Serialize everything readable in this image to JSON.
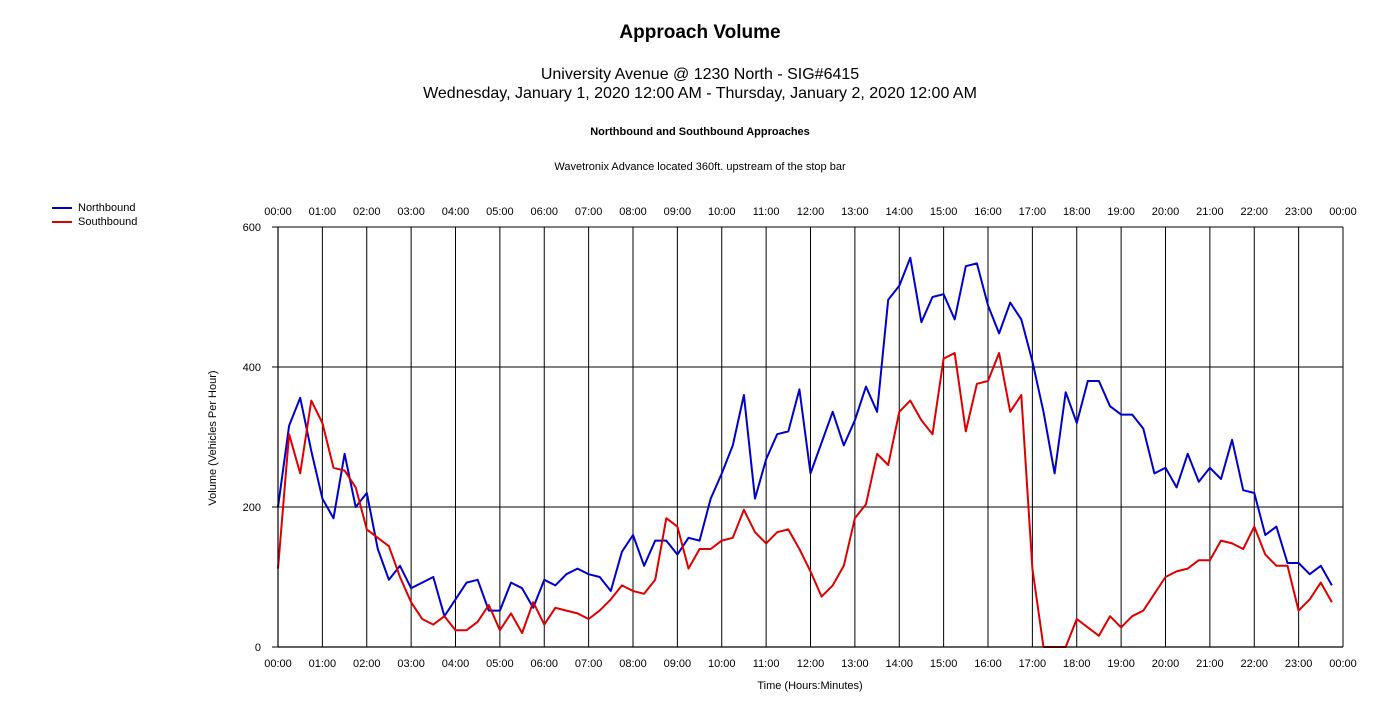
{
  "chart_data": {
    "type": "line",
    "title": "Approach Volume",
    "subtitle_lines": [
      "University Avenue @ 1230 North - SIG#6415",
      "Wednesday, January 1, 2020 12:00 AM - Thursday, January 2, 2020 12:00 AM"
    ],
    "subheading": "Northbound and Southbound Approaches",
    "note": "Wavetronix Advance located 360ft. upstream of the stop bar",
    "xlabel": "Time (Hours:Minutes)",
    "ylabel": "Volume (Vehicles Per Hour)",
    "ylim": [
      0,
      600
    ],
    "yticks": [
      0,
      200,
      400,
      600
    ],
    "xlim_hours": [
      0,
      24
    ],
    "xtick_labels": [
      "00:00",
      "01:00",
      "02:00",
      "03:00",
      "04:00",
      "05:00",
      "06:00",
      "07:00",
      "08:00",
      "09:00",
      "10:00",
      "11:00",
      "12:00",
      "13:00",
      "14:00",
      "15:00",
      "16:00",
      "17:00",
      "18:00",
      "19:00",
      "20:00",
      "21:00",
      "22:00",
      "23:00",
      "00:00"
    ],
    "grid": true,
    "legend_position": "left",
    "interval_hours": 0.25,
    "series": [
      {
        "name": "Northbound",
        "color": "#0000cc",
        "values": [
          200,
          316,
          356,
          280,
          212,
          184,
          276,
          200,
          220,
          140,
          96,
          116,
          84,
          92,
          100,
          44,
          68,
          92,
          96,
          52,
          52,
          92,
          84,
          56,
          96,
          88,
          104,
          112,
          104,
          100,
          80,
          136,
          160,
          116,
          152,
          152,
          132,
          156,
          152,
          212,
          248,
          288,
          360,
          212,
          268,
          304,
          308,
          368,
          248,
          292,
          336,
          288,
          324,
          372,
          336,
          496,
          516,
          556,
          464,
          500,
          504,
          468,
          544,
          548,
          488,
          448,
          492,
          468,
          408,
          336,
          248,
          364,
          320,
          380,
          380,
          344,
          332,
          332,
          312,
          248,
          256,
          228,
          276,
          236,
          256,
          240,
          296,
          224,
          220,
          160,
          172,
          120,
          120,
          104,
          116,
          88
        ]
      },
      {
        "name": "Southbound",
        "color": "#dd0000",
        "values": [
          112,
          304,
          248,
          352,
          320,
          256,
          252,
          228,
          168,
          156,
          144,
          100,
          64,
          40,
          32,
          44,
          24,
          24,
          36,
          60,
          24,
          48,
          20,
          64,
          32,
          56,
          52,
          48,
          40,
          52,
          68,
          88,
          80,
          76,
          96,
          184,
          172,
          112,
          140,
          140,
          152,
          156,
          196,
          164,
          148,
          164,
          168,
          140,
          108,
          72,
          88,
          116,
          184,
          204,
          276,
          260,
          336,
          352,
          324,
          304,
          412,
          420,
          308,
          376,
          380,
          420,
          336,
          360,
          112,
          0,
          0,
          0,
          40,
          28,
          16,
          44,
          28,
          44,
          52,
          76,
          100,
          108,
          112,
          124,
          124,
          152,
          148,
          140,
          172,
          132,
          116,
          116,
          52,
          68,
          92,
          64
        ]
      }
    ]
  }
}
